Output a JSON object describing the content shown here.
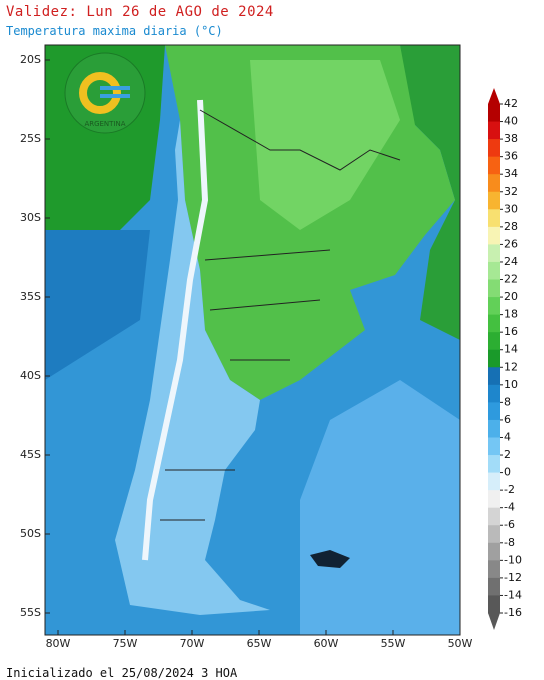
{
  "header": {
    "title": "Validez: Lun 26 de AGO de 2024",
    "subtitle": "Temperatura maxima diaria (°C)"
  },
  "map": {
    "lat_labels": [
      "20S",
      "25S",
      "30S",
      "35S",
      "40S",
      "45S",
      "50S",
      "55S"
    ],
    "lon_labels": [
      "80W",
      "75W",
      "70W",
      "65W",
      "60W",
      "55W",
      "50W"
    ],
    "logo_text": "ARGENTINA"
  },
  "colorbar": {
    "values": [
      42,
      40,
      38,
      36,
      34,
      32,
      30,
      28,
      26,
      24,
      22,
      20,
      18,
      16,
      14,
      12,
      10,
      8,
      6,
      4,
      2,
      0,
      -2,
      -4,
      -6,
      -8,
      -10,
      -12,
      -14,
      -16
    ],
    "colors": [
      "#b40000",
      "#d81010",
      "#ee3a10",
      "#f76212",
      "#f88c1c",
      "#f8b430",
      "#f8e070",
      "#f8f4b4",
      "#c8f0b0",
      "#a6e894",
      "#84dc74",
      "#62d058",
      "#44c040",
      "#2cae32",
      "#1a9a2a",
      "#1670b4",
      "#1e86cc",
      "#2e9ade",
      "#4cb0ea",
      "#74c6f4",
      "#a2dcf8",
      "#d6eefa",
      "#f0f0f0",
      "#d4d4d4",
      "#bababa",
      "#a0a0a0",
      "#888888",
      "#707070",
      "#585858"
    ]
  },
  "footer": "Inicializado el 25/08/2024 3 HOA"
}
